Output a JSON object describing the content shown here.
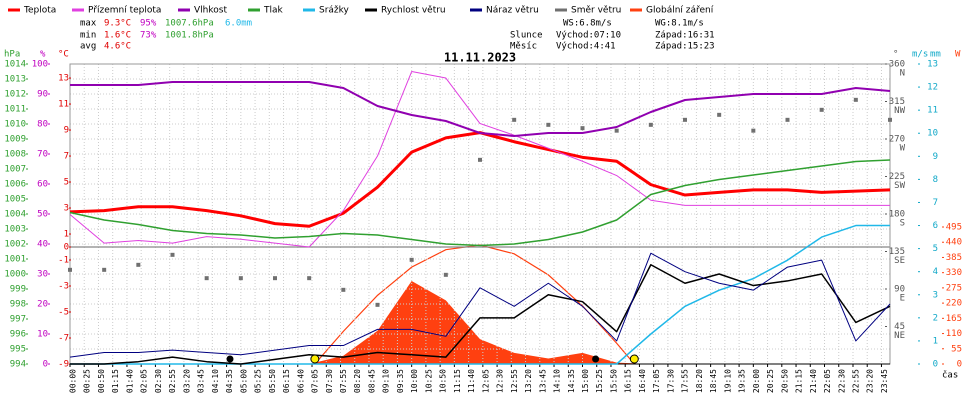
{
  "chart_data": {
    "type": "line",
    "title": "11.11.2023",
    "xlabel": "čas",
    "xlim": [
      0,
      1440
    ],
    "xticks": [
      {
        "value": 0,
        "label": "00:00"
      },
      {
        "value": 25,
        "label": "00:25"
      },
      {
        "value": 50,
        "label": "00:50"
      },
      {
        "value": 75,
        "label": "01:15"
      },
      {
        "value": 100,
        "label": "01:40"
      },
      {
        "value": 125,
        "label": "02:05"
      },
      {
        "value": 150,
        "label": "02:30"
      },
      {
        "value": 175,
        "label": "02:55"
      },
      {
        "value": 200,
        "label": "03:20"
      },
      {
        "value": 225,
        "label": "03:45"
      },
      {
        "value": 250,
        "label": "04:10"
      },
      {
        "value": 275,
        "label": "04:35"
      },
      {
        "value": 300,
        "label": "05:00"
      },
      {
        "value": 325,
        "label": "05:25"
      },
      {
        "value": 350,
        "label": "05:50"
      },
      {
        "value": 375,
        "label": "06:15"
      },
      {
        "value": 400,
        "label": "06:40"
      },
      {
        "value": 425,
        "label": "07:05"
      },
      {
        "value": 450,
        "label": "07:30"
      },
      {
        "value": 475,
        "label": "07:55"
      },
      {
        "value": 500,
        "label": "08:20"
      },
      {
        "value": 525,
        "label": "08:45"
      },
      {
        "value": 550,
        "label": "09:10"
      },
      {
        "value": 575,
        "label": "09:35"
      },
      {
        "value": 600,
        "label": "10:00"
      },
      {
        "value": 625,
        "label": "10:25"
      },
      {
        "value": 650,
        "label": "10:50"
      },
      {
        "value": 675,
        "label": "11:15"
      },
      {
        "value": 700,
        "label": "11:40"
      },
      {
        "value": 725,
        "label": "12:05"
      },
      {
        "value": 750,
        "label": "12:30"
      },
      {
        "value": 775,
        "label": "12:55"
      },
      {
        "value": 800,
        "label": "13:20"
      },
      {
        "value": 825,
        "label": "13:45"
      },
      {
        "value": 850,
        "label": "14:10"
      },
      {
        "value": 875,
        "label": "14:35"
      },
      {
        "value": 900,
        "label": "15:00"
      },
      {
        "value": 925,
        "label": "15:25"
      },
      {
        "value": 950,
        "label": "15:50"
      },
      {
        "value": 975,
        "label": "16:15"
      },
      {
        "value": 1000,
        "label": "16:40"
      },
      {
        "value": 1025,
        "label": "17:05"
      },
      {
        "value": 1050,
        "label": "17:30"
      },
      {
        "value": 1075,
        "label": "17:55"
      },
      {
        "value": 1100,
        "label": "18:20"
      },
      {
        "value": 1125,
        "label": "18:45"
      },
      {
        "value": 1150,
        "label": "19:10"
      },
      {
        "value": 1175,
        "label": "19:35"
      },
      {
        "value": 1200,
        "label": "20:00"
      },
      {
        "value": 1225,
        "label": "20:25"
      },
      {
        "value": 1250,
        "label": "20:50"
      },
      {
        "value": 1275,
        "label": "21:15"
      },
      {
        "value": 1300,
        "label": "21:40"
      },
      {
        "value": 1325,
        "label": "22:05"
      },
      {
        "value": 1350,
        "label": "22:30"
      },
      {
        "value": 1375,
        "label": "22:55"
      },
      {
        "value": 1400,
        "label": "23:20"
      },
      {
        "value": 1425,
        "label": "23:45"
      }
    ],
    "axes": [
      {
        "unit": "hPa",
        "color": "#30a030",
        "lim": [
          994,
          1014
        ],
        "ticks": [
          994,
          995,
          996,
          997,
          998,
          999,
          1000,
          1001,
          1002,
          1003,
          1004,
          1005,
          1006,
          1007,
          1008,
          1009,
          1010,
          1011,
          1012,
          1013,
          1014
        ]
      },
      {
        "unit": "%",
        "color": "#c000c0",
        "lim": [
          0,
          100
        ],
        "ticks": [
          0,
          10,
          20,
          30,
          40,
          50,
          60,
          70,
          80,
          90,
          100
        ]
      },
      {
        "unit": "°C",
        "color": "#e00000",
        "lim": [
          -9,
          14.08
        ],
        "ticks": [
          -9,
          -7,
          -5,
          -3,
          -1,
          0,
          1,
          3,
          5,
          7,
          9,
          11,
          13
        ]
      },
      {
        "unit": "°",
        "color": "#555555",
        "lim": [
          0,
          360
        ],
        "ticks": [
          {
            "value": 360,
            "label": "360",
            "compass": "N"
          },
          {
            "value": 315,
            "label": "315",
            "compass": "NW"
          },
          {
            "value": 270,
            "label": "270",
            "compass": "W"
          },
          {
            "value": 225,
            "label": "225",
            "compass": "SW"
          },
          {
            "value": 180,
            "label": "180",
            "compass": "S"
          },
          {
            "value": 135,
            "label": "135",
            "compass": "SE"
          },
          {
            "value": 90,
            "label": "90",
            "compass": "E"
          },
          {
            "value": 45,
            "label": "45",
            "compass": "NE"
          }
        ]
      },
      {
        "unit": "m/s",
        "unit2": "mm",
        "color": "#10a8c8",
        "lim": [
          0,
          13
        ],
        "ticks": [
          0,
          1,
          2,
          3,
          4,
          5,
          6,
          7,
          8,
          9,
          10,
          11,
          12,
          13
        ]
      },
      {
        "unit": "W",
        "color": "#ff4010",
        "lim": [
          0,
          1084
        ],
        "ticks": [
          0,
          55,
          110,
          165,
          220,
          275,
          330,
          385,
          440,
          495
        ]
      }
    ],
    "x": [
      0,
      60,
      120,
      180,
      240,
      300,
      360,
      420,
      480,
      540,
      600,
      660,
      720,
      780,
      840,
      900,
      960,
      1020,
      1080,
      1140,
      1200,
      1260,
      1320,
      1380,
      1440
    ],
    "series": [
      {
        "name": "Teplota",
        "color": "#ff0000",
        "axis": 2,
        "width": 3,
        "values": [
          2.7,
          2.8,
          3.1,
          3.1,
          2.8,
          2.4,
          1.8,
          1.6,
          2.6,
          4.6,
          7.3,
          8.4,
          8.8,
          8.1,
          7.5,
          6.9,
          6.6,
          4.8,
          4.0,
          4.2,
          4.4,
          4.4,
          4.2,
          4.3,
          4.4
        ]
      },
      {
        "name": "Přízemní teplota",
        "color": "#e040e0",
        "axis": 2,
        "width": 1,
        "values": [
          2.5,
          0.3,
          0.5,
          0.3,
          0.8,
          0.6,
          0.3,
          0.0,
          2.8,
          7.0,
          13.5,
          13.0,
          9.5,
          8.6,
          7.6,
          6.6,
          5.5,
          3.6,
          3.2,
          3.2,
          3.2,
          3.2,
          3.2,
          3.2,
          3.2
        ]
      },
      {
        "name": "Vlhkost",
        "color": "#9000b0",
        "axis": 1,
        "width": 2,
        "values": [
          93,
          93,
          93,
          94,
          94,
          94,
          94,
          94,
          92,
          86,
          83,
          81,
          77,
          76,
          77,
          77,
          79,
          84,
          88,
          89,
          90,
          90,
          90,
          92,
          91
        ]
      },
      {
        "name": "Tlak",
        "color": "#30a030",
        "axis": 0,
        "width": 1.5,
        "values": [
          1004.1,
          1003.6,
          1003.3,
          1002.9,
          1002.7,
          1002.6,
          1002.4,
          1002.5,
          1002.7,
          1002.6,
          1002.3,
          1002.0,
          1001.9,
          1002.0,
          1002.3,
          1002.8,
          1003.6,
          1005.3,
          1005.9,
          1006.3,
          1006.6,
          1006.9,
          1007.2,
          1007.5,
          1007.6
        ]
      },
      {
        "name": "Srážky",
        "color": "#20b8e8",
        "axis": 4,
        "width": 1.5,
        "values": [
          0,
          0,
          0,
          0,
          0,
          0,
          0,
          0,
          0,
          0,
          0,
          0,
          0,
          0,
          0,
          0,
          0,
          1.3,
          2.5,
          3.2,
          3.7,
          4.5,
          5.5,
          6.0,
          6.0
        ]
      },
      {
        "name": "Rychlost větru",
        "color": "#000000",
        "axis": 4,
        "width": 1.5,
        "values": [
          0,
          0,
          0.1,
          0.3,
          0.1,
          0,
          0.2,
          0.4,
          0.3,
          0.5,
          0.4,
          0.3,
          2.0,
          2.0,
          3.0,
          2.7,
          1.4,
          4.3,
          3.5,
          3.9,
          3.4,
          3.6,
          3.9,
          1.8,
          2.5
        ]
      },
      {
        "name": "Náraz větru",
        "color": "#000080",
        "axis": 4,
        "width": 1,
        "values": [
          0.3,
          0.5,
          0.5,
          0.6,
          0.5,
          0.4,
          0.6,
          0.8,
          0.8,
          1.5,
          1.5,
          1.2,
          3.3,
          2.5,
          3.5,
          2.5,
          1.0,
          4.8,
          4.0,
          3.5,
          3.2,
          4.2,
          4.5,
          1.0,
          2.6
        ]
      },
      {
        "name": "Směr větru",
        "color": "#707070",
        "axis": 3,
        "style": "points",
        "values": [
          113,
          113,
          119,
          131,
          103,
          103,
          103,
          103,
          89,
          71,
          125,
          107,
          245,
          293,
          287,
          283,
          280,
          287,
          293,
          299,
          280,
          293,
          305,
          317,
          293
        ]
      },
      {
        "name": "Globální záření",
        "color": "#ff4010",
        "axis": 5,
        "style": "area",
        "values": [
          0,
          0,
          0,
          0,
          0,
          0,
          0,
          0,
          30,
          120,
          300,
          230,
          90,
          40,
          20,
          40,
          5,
          0,
          0,
          0,
          0,
          0,
          0,
          0,
          0
        ],
        "clear_sky": {
          "x": [
            430,
            480,
            540,
            600,
            660,
            720,
            780,
            840,
            900,
            960,
            991
          ],
          "values": [
            0,
            118,
            248,
            350,
            413,
            430,
            398,
            322,
            210,
            75,
            0
          ]
        }
      }
    ],
    "markers": {
      "sun": [
        430,
        991
      ],
      "moon": [
        281,
        923
      ]
    },
    "stats": [
      {
        "label": "max",
        "temp": "9.3°C",
        "hum": "95%",
        "pres": "1007.6hPa",
        "rain": "6.0mm"
      },
      {
        "label": "min",
        "temp": "1.6°C",
        "hum": "73%",
        "pres": "1001.8hPa"
      },
      {
        "label": "avg",
        "temp": "4.6°C"
      }
    ],
    "wind_stats": [
      "WS:6.8m/s",
      "WG:8.1m/s"
    ],
    "sun": {
      "label": "Slunce",
      "rise": "Východ:07:10",
      "set": "Západ:16:31"
    },
    "moon": {
      "label": "Měsíc",
      "rise": "Východ:4:41",
      "set": "Západ:15:23"
    },
    "grid": true
  }
}
